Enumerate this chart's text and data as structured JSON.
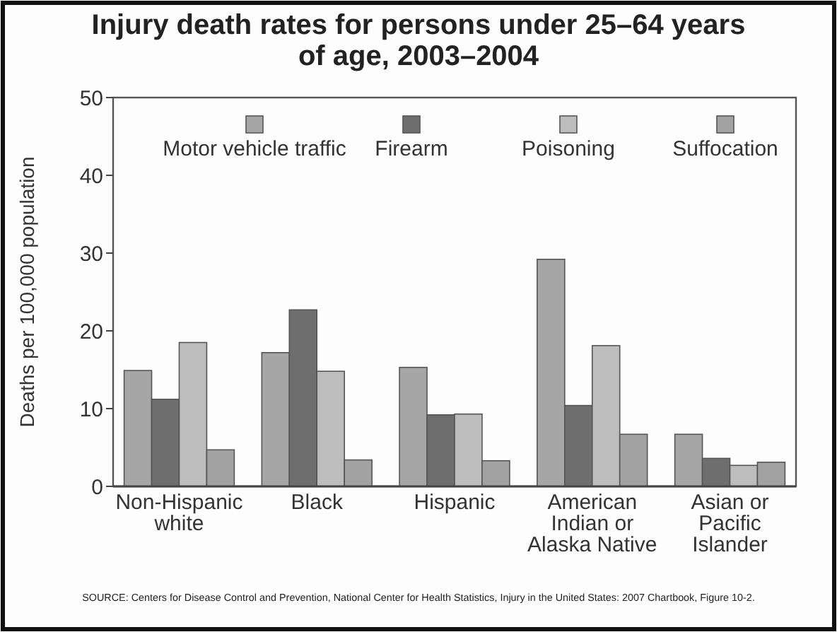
{
  "chart_data": {
    "type": "bar",
    "title": "Injury death rates for persons under 25–64 years of age, 2003–2004",
    "ylabel": "Deaths per 100,000 population",
    "categories": [
      "Non-Hispanic white",
      "Black",
      "Hispanic",
      "American Indian or Alaska Native",
      "Asian or Pacific Islander"
    ],
    "series": [
      {
        "name": "Motor vehicle traffic",
        "color": "#a6a6a6",
        "values": [
          14.9,
          17.2,
          15.3,
          29.2,
          6.7
        ]
      },
      {
        "name": "Firearm",
        "color": "#6e6e6e",
        "values": [
          11.2,
          22.7,
          9.2,
          10.4,
          3.6
        ]
      },
      {
        "name": "Poisoning",
        "color": "#bdbdbd",
        "values": [
          18.5,
          14.8,
          9.3,
          18.1,
          2.7
        ]
      },
      {
        "name": "Suffocation",
        "color": "#a2a2a2",
        "values": [
          4.7,
          3.4,
          3.3,
          6.7,
          3.1
        ]
      }
    ],
    "ylim": [
      0,
      50
    ],
    "yticks": [
      0,
      10,
      20,
      30,
      40,
      50
    ],
    "grid": false,
    "legend": "top",
    "annotations": [
      "SOURCE: Centers for Disease Control and Prevention, National Center for Health Statistics, Injury in the United States: 2007 Chartbook, Figure 10-2."
    ]
  }
}
